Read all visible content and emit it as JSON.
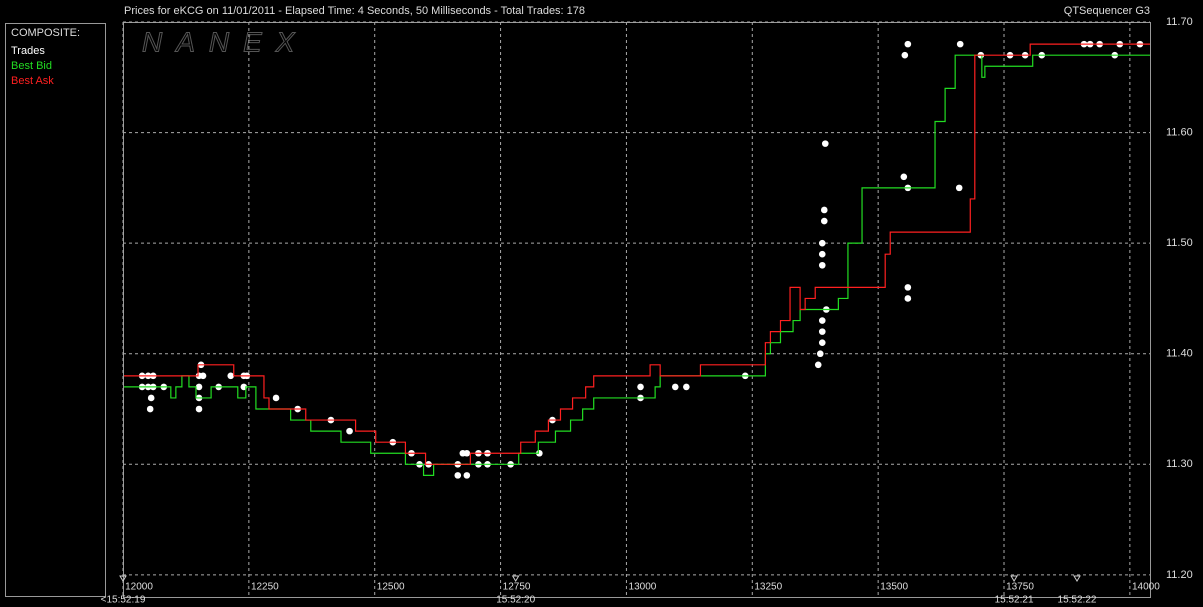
{
  "chart_data": {
    "type": "line",
    "title": "Prices for  eKCG  on  11/01/2011  -  Elapsed Time: 4 Seconds, 50 Milliseconds  -  Total Trades: 178",
    "subtitle": "QTSequencer G3",
    "watermark": "NANEX",
    "legend_title": "COMPOSITE:",
    "xlim": [
      12000,
      14040
    ],
    "xticks": [
      12000,
      12250,
      12500,
      12750,
      13000,
      13250,
      13500,
      13750,
      14000
    ],
    "ylim": [
      11.18,
      11.7
    ],
    "yticks": [
      {
        "value": 11.2,
        "label": "11.20"
      },
      {
        "value": 11.3,
        "label": "11.30"
      },
      {
        "value": 11.4,
        "label": "11.40"
      },
      {
        "value": 11.5,
        "label": "11.50"
      },
      {
        "value": 11.6,
        "label": "11.60"
      },
      {
        "value": 11.7,
        "label": "11.70"
      }
    ],
    "grid": true,
    "time_labels": [
      {
        "x": 12000,
        "label": "<15:52:19"
      },
      {
        "x": 12780,
        "label": "15:52:20"
      },
      {
        "x": 13770,
        "label": "15:52:21"
      },
      {
        "x": 13895,
        "label": "15:52:22"
      }
    ],
    "series": [
      {
        "name": "Trades",
        "color": "#ffffff",
        "mode": "markers",
        "x": [
          12038,
          12038,
          12050,
          12050,
          12056,
          12054,
          12060,
          12060,
          12081,
          12151,
          12151,
          12151,
          12155,
          12159,
          12151,
          12190,
          12214,
          12240,
          12240,
          12246,
          12304,
          12347,
          12413,
          12450,
          12536,
          12573,
          12589,
          12607,
          12665,
          12665,
          12683,
          12675,
          12683,
          12706,
          12706,
          12724,
          12724,
          12770,
          12827,
          12853,
          13028,
          13028,
          13097,
          13119,
          13236,
          13381,
          13385,
          13389,
          13389,
          13389,
          13397,
          13389,
          13389,
          13389,
          13393,
          13393,
          13395,
          13551,
          13559,
          13559,
          13559,
          13553,
          13559,
          13661,
          13663,
          13704,
          13762,
          13792,
          13825,
          13909,
          13921,
          13940,
          13970,
          13980,
          14020
        ],
        "values": [
          11.38,
          11.37,
          11.38,
          11.37,
          11.36,
          11.35,
          11.38,
          11.37,
          11.37,
          11.38,
          11.37,
          11.36,
          11.39,
          11.38,
          11.35,
          11.37,
          11.38,
          11.38,
          11.37,
          11.38,
          11.36,
          11.35,
          11.34,
          11.33,
          11.32,
          11.31,
          11.3,
          11.3,
          11.3,
          11.29,
          11.29,
          11.31,
          11.31,
          11.31,
          11.3,
          11.31,
          11.3,
          11.3,
          11.31,
          11.34,
          11.37,
          11.36,
          11.37,
          11.37,
          11.38,
          11.39,
          11.4,
          11.41,
          11.42,
          11.43,
          11.44,
          11.48,
          11.49,
          11.5,
          11.52,
          11.53,
          11.59,
          11.56,
          11.55,
          11.45,
          11.46,
          11.67,
          11.68,
          11.55,
          11.68,
          11.67,
          11.67,
          11.67,
          11.67,
          11.68,
          11.68,
          11.68,
          11.67,
          11.68,
          11.68
        ]
      },
      {
        "name": "Best Bid",
        "color": "#22dd22",
        "mode": "step",
        "x": [
          12002,
          12095,
          12105,
          12117,
          12131,
          12145,
          12175,
          12228,
          12244,
          12264,
          12333,
          12373,
          12433,
          12492,
          12561,
          12597,
          12617,
          12786,
          12825,
          12859,
          12889,
          12913,
          12935,
          13057,
          13067,
          13276,
          13286,
          13306,
          13331,
          13345,
          13421,
          13440,
          13468,
          13613,
          13633,
          13653,
          13706,
          13712,
          13807,
          14040
        ],
        "values": [
          11.37,
          11.36,
          11.37,
          11.38,
          11.37,
          11.36,
          11.37,
          11.36,
          11.37,
          11.35,
          11.34,
          11.33,
          11.32,
          11.31,
          11.3,
          11.29,
          11.3,
          11.31,
          11.32,
          11.33,
          11.34,
          11.35,
          11.36,
          11.37,
          11.38,
          11.4,
          11.41,
          11.42,
          11.43,
          11.44,
          11.45,
          11.5,
          11.55,
          11.61,
          11.64,
          11.67,
          11.65,
          11.66,
          11.67,
          11.67
        ]
      },
      {
        "name": "Best Ask",
        "color": "#ff2020",
        "mode": "step",
        "x": [
          12002,
          12149,
          12220,
          12280,
          12290,
          12339,
          12363,
          12462,
          12502,
          12561,
          12601,
          12690,
          12790,
          12819,
          12845,
          12869,
          12893,
          12919,
          12935,
          13047,
          13067,
          13147,
          13276,
          13286,
          13306,
          13325,
          13345,
          13355,
          13375,
          13514,
          13524,
          13683,
          13692,
          13802,
          14040
        ],
        "values": [
          11.38,
          11.39,
          11.38,
          11.36,
          11.35,
          11.35,
          11.34,
          11.33,
          11.32,
          11.31,
          11.3,
          11.31,
          11.32,
          11.33,
          11.34,
          11.35,
          11.36,
          11.37,
          11.38,
          11.39,
          11.38,
          11.39,
          11.41,
          11.42,
          11.43,
          11.46,
          11.44,
          11.45,
          11.46,
          11.49,
          11.51,
          11.54,
          11.67,
          11.68,
          11.68
        ]
      }
    ]
  }
}
